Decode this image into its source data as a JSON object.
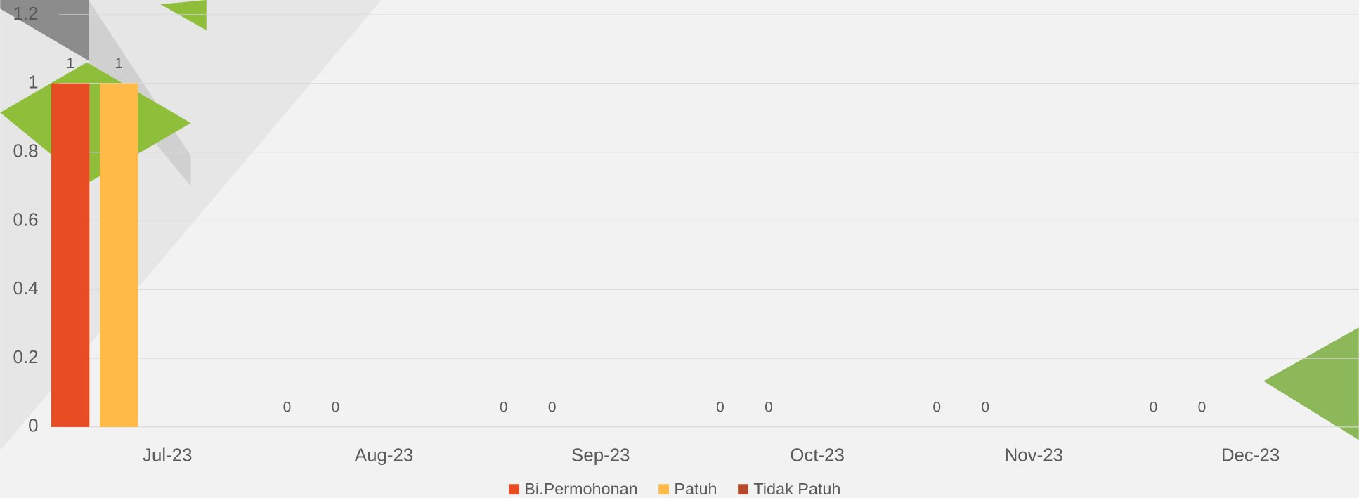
{
  "chart_data": {
    "type": "bar",
    "categories": [
      "Jul-23",
      "Aug-23",
      "Sep-23",
      "Oct-23",
      "Nov-23",
      "Dec-23"
    ],
    "series": [
      {
        "name": "Bi.Permohonan",
        "color": "#e84c22",
        "values": [
          1,
          0,
          0,
          0,
          0,
          0
        ]
      },
      {
        "name": "Patuh",
        "color": "#ffba47",
        "values": [
          1,
          0,
          0,
          0,
          0,
          0
        ]
      },
      {
        "name": "Tidak Patuh",
        "color": "#b5472c",
        "values": [
          null,
          null,
          null,
          null,
          null,
          null
        ]
      }
    ],
    "ylim": [
      0,
      1.2
    ],
    "yticks": [
      0,
      0.2,
      0.4,
      0.6,
      0.8,
      1,
      1.2
    ],
    "grid": true,
    "legend": "bottom"
  }
}
